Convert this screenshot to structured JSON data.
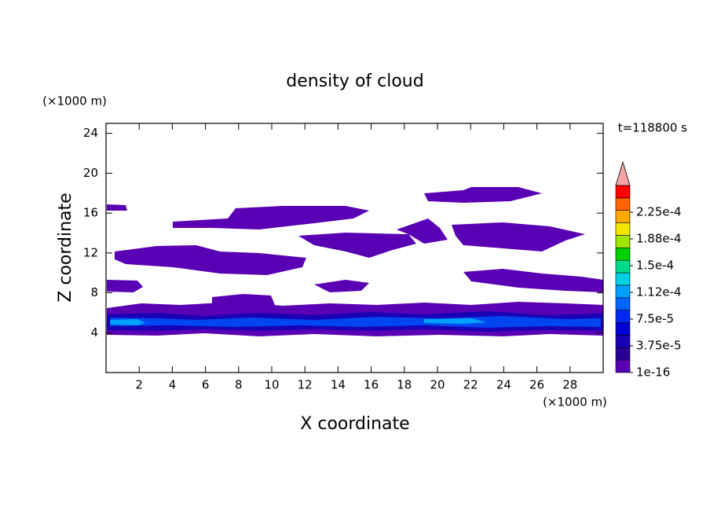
{
  "chart_data": {
    "type": "contour",
    "title": "density of cloud",
    "xlabel": "X coordinate",
    "ylabel": "Z coordinate",
    "x_unit": "(×1000 m)",
    "y_unit": "(×1000 m)",
    "annotation": "t=118800 s",
    "xlim": [
      0,
      30
    ],
    "xticks": [
      2,
      4,
      6,
      8,
      10,
      12,
      14,
      16,
      18,
      20,
      22,
      24,
      26,
      28
    ],
    "ylim": [
      0,
      25
    ],
    "yticks": [
      4,
      8,
      12,
      16,
      20,
      24
    ],
    "colorbar": {
      "lim": [
        1e-16,
        0.0002625
      ],
      "colors": [
        "#5a00b4",
        "#2a0096",
        "#1a00b4",
        "#0000d2",
        "#0028f0",
        "#0064ff",
        "#00a0ff",
        "#00d2e6",
        "#00dc8c",
        "#00d200",
        "#a0e600",
        "#f0e600",
        "#ffaa00",
        "#ff6400",
        "#ff0000"
      ],
      "extend_color": "#f4a6a6",
      "ticks": [
        {
          "value": 1e-16,
          "label": "1e-16"
        },
        {
          "value": 3.75e-05,
          "label": "3.75e-5"
        },
        {
          "value": 7.5e-05,
          "label": "7.5e-5"
        },
        {
          "value": 0.0001125,
          "label": "1.12e-4"
        },
        {
          "value": 0.00015,
          "label": "1.5e-4"
        },
        {
          "value": 0.0001875,
          "label": "1.88e-4"
        },
        {
          "value": 0.000225,
          "label": "2.25e-4"
        }
      ]
    }
  }
}
